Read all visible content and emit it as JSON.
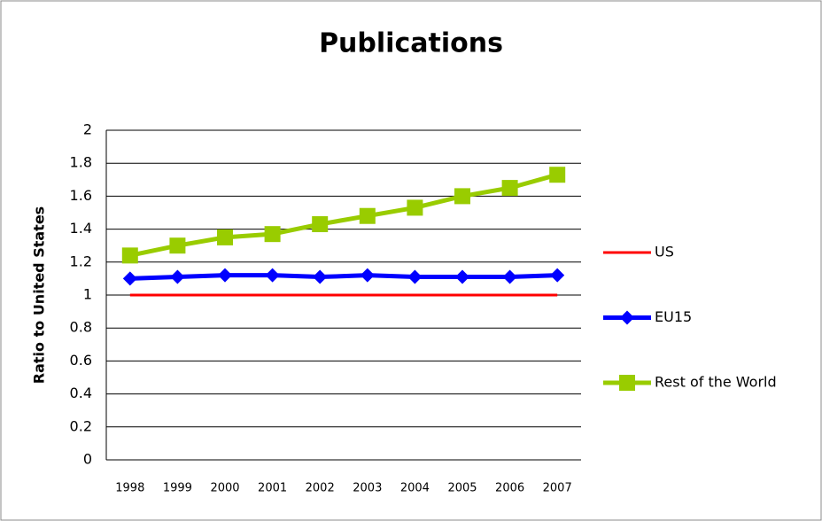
{
  "chart_data": {
    "type": "line",
    "title": "Publications",
    "y_label": "Ratio to United States",
    "categories": [
      "1998",
      "1999",
      "2000",
      "2001",
      "2002",
      "2003",
      "2004",
      "2005",
      "2006",
      "2007"
    ],
    "series": [
      {
        "name": "US",
        "color": "#ff0000",
        "marker": null,
        "values": [
          1,
          1,
          1,
          1,
          1,
          1,
          1,
          1,
          1,
          1
        ]
      },
      {
        "name": "EU15",
        "color": "#0000ff",
        "marker": "diamond",
        "values": [
          1.1,
          1.11,
          1.12,
          1.12,
          1.11,
          1.12,
          1.11,
          1.11,
          1.11,
          1.12
        ]
      },
      {
        "name": "Rest of the World",
        "color": "#99cc00",
        "marker": "square",
        "values": [
          1.24,
          1.3,
          1.35,
          1.37,
          1.43,
          1.48,
          1.53,
          1.6,
          1.65,
          1.73
        ]
      }
    ],
    "ylim": [
      0,
      2
    ],
    "yticks": [
      0,
      0.2,
      0.4,
      0.6,
      0.8,
      1,
      1.2,
      1.4,
      1.6,
      1.8,
      2
    ],
    "grid": true,
    "legend": "right"
  }
}
